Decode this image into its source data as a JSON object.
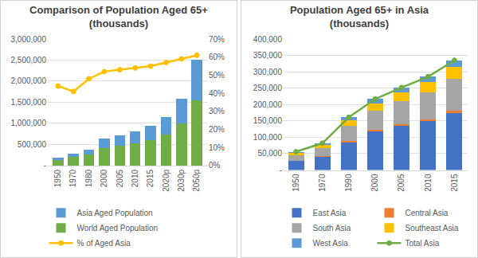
{
  "chart_data": [
    {
      "type": "bar",
      "title": "Comparison of Population Aged 65+\n(thousands)",
      "categories": [
        "1950",
        "1970",
        "1980",
        "2000",
        "2005",
        "2010",
        "2015",
        "2020p",
        "2030p",
        "2050p"
      ],
      "stacked": true,
      "grid": true,
      "legend": "bottom",
      "series": [
        {
          "name": "Asia Aged Population",
          "type": "bar",
          "color": "#5b9bd5",
          "values": [
            56000,
            82000,
            125000,
            217000,
            252000,
            285000,
            335000,
            420000,
            590000,
            955000
          ]
        },
        {
          "name": "World Aged Population",
          "type": "bar",
          "color": "#70ad47",
          "values": [
            128000,
            200000,
            258000,
            419000,
            474000,
            531000,
            608000,
            728000,
            998000,
            1548000
          ]
        },
        {
          "name": "% of Aged Asia",
          "type": "line",
          "axis": "y2",
          "color": "#ffc000",
          "marker": "circle",
          "values": [
            44,
            41,
            48,
            52,
            53,
            54,
            55,
            57,
            59,
            61
          ]
        }
      ],
      "ylim": [
        0,
        3000000
      ],
      "yticks": [
        {
          "value": 0,
          "label": "-"
        },
        {
          "value": 500000,
          "label": "500,000"
        },
        {
          "value": 1000000,
          "label": "1,000,000"
        },
        {
          "value": 1500000,
          "label": "1,500,000"
        },
        {
          "value": 2000000,
          "label": "2,000,000"
        },
        {
          "value": 2500000,
          "label": "2,500,000"
        },
        {
          "value": 3000000,
          "label": "3,000,000"
        }
      ],
      "y2lim": [
        0,
        70
      ],
      "y2ticks": [
        {
          "value": 0,
          "label": "0%"
        },
        {
          "value": 10,
          "label": "10%"
        },
        {
          "value": 20,
          "label": "20%"
        },
        {
          "value": 30,
          "label": "30%"
        },
        {
          "value": 40,
          "label": "40%"
        },
        {
          "value": 50,
          "label": "50%"
        },
        {
          "value": 60,
          "label": "60%"
        },
        {
          "value": 70,
          "label": "70%"
        }
      ]
    },
    {
      "type": "bar",
      "title": "Population Aged 65+ in Asia\n(thousands)",
      "categories": [
        "1950",
        "1970",
        "1990",
        "2000",
        "2005",
        "2010",
        "2015"
      ],
      "stacked": true,
      "grid": true,
      "legend": "bottom",
      "series": [
        {
          "name": "East Asia",
          "type": "bar",
          "color": "#4472c4",
          "values": [
            27000,
            40000,
            85000,
            118000,
            135000,
            150000,
            175000
          ]
        },
        {
          "name": "Central Asia",
          "type": "bar",
          "color": "#ed7d31",
          "values": [
            2000,
            3000,
            4000,
            4000,
            5000,
            5000,
            6000
          ]
        },
        {
          "name": "South Asia",
          "type": "bar",
          "color": "#a5a5a5",
          "values": [
            17000,
            25000,
            45000,
            60000,
            70000,
            82000,
            98000
          ]
        },
        {
          "name": "Southeast Asia",
          "type": "bar",
          "color": "#ffc000",
          "values": [
            6000,
            9000,
            17000,
            22000,
            27000,
            31000,
            37000
          ]
        },
        {
          "name": "West Asia",
          "type": "bar",
          "color": "#5b9bd5",
          "values": [
            4000,
            5000,
            10000,
            13000,
            15000,
            17000,
            19000
          ]
        },
        {
          "name": "Total Asia",
          "type": "line",
          "color": "#70ad47",
          "marker": "circle",
          "values": [
            56000,
            82000,
            161000,
            217000,
            252000,
            285000,
            335000
          ]
        }
      ],
      "ylim": [
        0,
        400000
      ],
      "yticks": [
        {
          "value": 0,
          "label": "-"
        },
        {
          "value": 50000,
          "label": "50,000"
        },
        {
          "value": 100000,
          "label": "100,000"
        },
        {
          "value": 150000,
          "label": "150,000"
        },
        {
          "value": 200000,
          "label": "200,000"
        },
        {
          "value": 250000,
          "label": "250,000"
        },
        {
          "value": 300000,
          "label": "300,000"
        },
        {
          "value": 350000,
          "label": "350,000"
        },
        {
          "value": 400000,
          "label": "400,000"
        }
      ]
    }
  ]
}
